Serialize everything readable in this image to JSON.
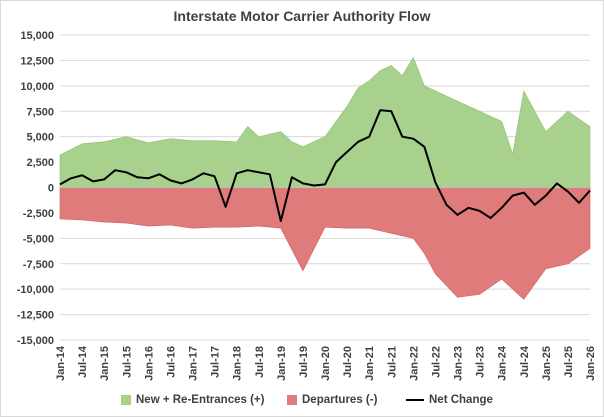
{
  "chart_data": {
    "type": "area",
    "title": "Interstate Motor Carrier Authority Flow",
    "xlabel": "",
    "ylabel": "",
    "ylim": [
      -15000,
      15000
    ],
    "y_ticks": [
      15000,
      12500,
      10000,
      7500,
      5000,
      2500,
      0,
      -2500,
      -5000,
      -7500,
      -10000,
      -12500,
      -15000
    ],
    "y_tick_labels": [
      "15,000",
      "12,500",
      "10,000",
      "7,500",
      "5,000",
      "2,500",
      "0",
      "-2,500",
      "-5,000",
      "-7,500",
      "-10,000",
      "-12,500",
      "-15,000"
    ],
    "x_tick_labels": [
      "Jan-14",
      "Jul-14",
      "Jan-15",
      "Jul-15",
      "Jan-16",
      "Jul-16",
      "Jan-17",
      "Jul-17",
      "Jan-18",
      "Jul-18",
      "Jan-19",
      "Jul-19",
      "Jan-20",
      "Jul-20",
      "Jan-21",
      "Jul-21",
      "Jan-22",
      "Jul-22",
      "Jan-23",
      "Jul-23",
      "Jan-24",
      "Jul-24",
      "Jan-25",
      "Jul-25",
      "Jan-26"
    ],
    "grid": "horizontal",
    "legend_position": "bottom",
    "colors": {
      "positive": "#a9d18e",
      "negative": "#e07b7b",
      "net": "#000000",
      "grid": "#d9d9d9"
    },
    "series": [
      {
        "name": "New + Re-Entrances (+)",
        "kind": "area",
        "x": [
          "2014-01",
          "2014-07",
          "2015-01",
          "2015-07",
          "2016-01",
          "2016-07",
          "2017-01",
          "2017-07",
          "2018-01",
          "2018-04",
          "2018-07",
          "2019-01",
          "2019-04",
          "2019-07",
          "2020-01",
          "2020-07",
          "2020-10",
          "2021-01",
          "2021-04",
          "2021-07",
          "2021-10",
          "2022-01",
          "2022-04",
          "2022-07",
          "2023-01",
          "2023-07",
          "2024-01",
          "2024-04",
          "2024-07",
          "2025-01",
          "2025-07",
          "2026-01"
        ],
        "values": [
          3200,
          4300,
          4500,
          5000,
          4400,
          4800,
          4600,
          4600,
          4500,
          6000,
          5000,
          5500,
          4500,
          4000,
          5000,
          8000,
          9800,
          10500,
          11500,
          12000,
          11000,
          12800,
          10000,
          9500,
          8500,
          7500,
          6500,
          3300,
          9500,
          5500,
          7500,
          6000
        ]
      },
      {
        "name": "Departures (-)",
        "kind": "area",
        "x": [
          "2014-01",
          "2014-07",
          "2015-01",
          "2015-07",
          "2016-01",
          "2016-07",
          "2017-01",
          "2017-07",
          "2018-01",
          "2018-07",
          "2019-01",
          "2019-07",
          "2020-01",
          "2020-07",
          "2021-01",
          "2021-07",
          "2022-01",
          "2022-04",
          "2022-07",
          "2023-01",
          "2023-07",
          "2024-01",
          "2024-07",
          "2025-01",
          "2025-07",
          "2026-01"
        ],
        "values": [
          -3100,
          -3200,
          -3400,
          -3500,
          -3800,
          -3700,
          -4000,
          -3900,
          -3900,
          -3800,
          -4000,
          -8200,
          -3900,
          -4000,
          -4000,
          -4500,
          -5000,
          -6500,
          -8500,
          -10800,
          -10500,
          -9000,
          -11000,
          -8000,
          -7500,
          -6000
        ]
      },
      {
        "name": "Net Change",
        "kind": "line",
        "x": [
          "2014-01",
          "2014-04",
          "2014-07",
          "2014-10",
          "2015-01",
          "2015-04",
          "2015-07",
          "2015-10",
          "2016-01",
          "2016-04",
          "2016-07",
          "2016-10",
          "2017-01",
          "2017-04",
          "2017-07",
          "2017-10",
          "2018-01",
          "2018-04",
          "2018-07",
          "2018-10",
          "2019-01",
          "2019-04",
          "2019-07",
          "2019-10",
          "2020-01",
          "2020-04",
          "2020-07",
          "2020-10",
          "2021-01",
          "2021-04",
          "2021-07",
          "2021-10",
          "2022-01",
          "2022-04",
          "2022-07",
          "2022-10",
          "2023-01",
          "2023-04",
          "2023-07",
          "2023-10",
          "2024-01",
          "2024-04",
          "2024-07",
          "2024-10",
          "2025-01",
          "2025-04",
          "2025-07",
          "2025-10",
          "2026-01"
        ],
        "values": [
          300,
          900,
          1200,
          600,
          800,
          1700,
          1500,
          1000,
          900,
          1300,
          700,
          400,
          800,
          1400,
          1100,
          -1900,
          1400,
          1700,
          1500,
          1300,
          -3300,
          1000,
          400,
          200,
          300,
          2500,
          3500,
          4500,
          5000,
          7600,
          7500,
          5000,
          4800,
          4000,
          500,
          -1700,
          -2700,
          -2000,
          -2300,
          -3000,
          -2000,
          -800,
          -500,
          -1700,
          -800,
          400,
          -400,
          -1500,
          -300
        ]
      }
    ]
  }
}
